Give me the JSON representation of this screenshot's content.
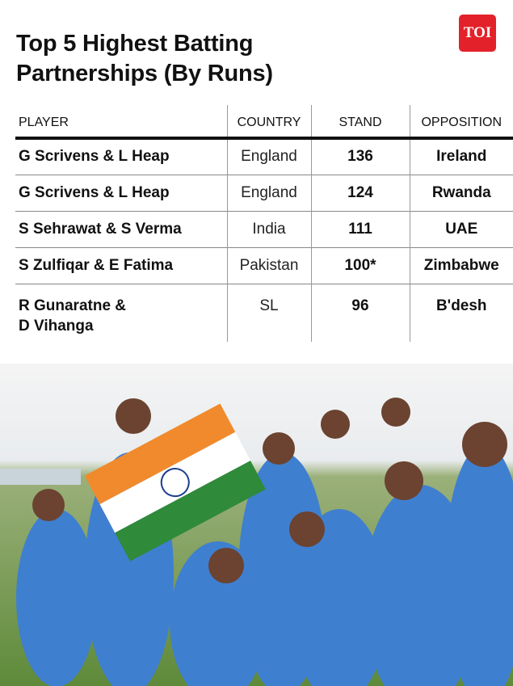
{
  "title": "Top 5 Highest Batting Partnerships (By Runs)",
  "logo": "TOI",
  "table": {
    "headers": [
      "PLAYER",
      "COUNTRY",
      "STAND",
      "OPPOSITION"
    ],
    "rows": [
      {
        "player": "G Scrivens & L Heap",
        "country": "England",
        "stand": "136",
        "opposition": "Ireland"
      },
      {
        "player": "G Scrivens & L Heap",
        "country": "England",
        "stand": "124",
        "opposition": "Rwanda"
      },
      {
        "player": "S Sehrawat & S Verma",
        "country": "India",
        "stand": "111",
        "opposition": "UAE"
      },
      {
        "player": "S Zulfiqar & E Fatima",
        "country": "Pakistan",
        "stand": "100*",
        "opposition": "Zimbabwe"
      },
      {
        "player": "R Gunaratne & D Vihanga",
        "country": "SL",
        "stand": "96",
        "opposition": "B'desh"
      }
    ]
  },
  "colors": {
    "brand": "#e3212a",
    "jersey": "#3f7fd0",
    "saffron": "#f08a2c",
    "green": "#2f8a3a"
  }
}
